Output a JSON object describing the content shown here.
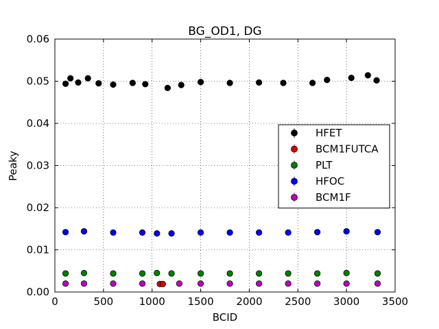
{
  "chart_data": {
    "type": "scatter",
    "title": "BG_OD1, DG",
    "xlabel": "BCID",
    "ylabel": "Peaky",
    "xlim": [
      0,
      3500
    ],
    "ylim": [
      0,
      0.06
    ],
    "xticks": [
      0,
      500,
      1000,
      1500,
      2000,
      2500,
      3000,
      3500
    ],
    "xtick_labels": [
      "0",
      "500",
      "1000",
      "1500",
      "2000",
      "2500",
      "3000",
      "3500"
    ],
    "yticks": [
      0.0,
      0.01,
      0.02,
      0.03,
      0.04,
      0.05,
      0.06
    ],
    "ytick_labels": [
      "0.00",
      "0.01",
      "0.02",
      "0.03",
      "0.04",
      "0.05",
      "0.06"
    ],
    "grid": true,
    "legend_position": "center-right",
    "series": [
      {
        "name": "HFET",
        "color": "#000000",
        "x": [
          110,
          160,
          240,
          340,
          450,
          600,
          800,
          930,
          1160,
          1300,
          1500,
          1800,
          2100,
          2350,
          2650,
          2800,
          3050,
          3220,
          3310
        ],
        "y": [
          0.0494,
          0.0507,
          0.0497,
          0.0507,
          0.0495,
          0.0492,
          0.0496,
          0.0493,
          0.0484,
          0.0491,
          0.0498,
          0.0496,
          0.0497,
          0.0496,
          0.0496,
          0.0503,
          0.0508,
          0.0514,
          0.0502
        ]
      },
      {
        "name": "BCM1FUTCA",
        "color": "#dd0000",
        "x": [
          1080,
          1110
        ],
        "y": [
          0.0019,
          0.0019
        ]
      },
      {
        "name": "PLT",
        "color": "#008000",
        "x": [
          110,
          300,
          600,
          900,
          1050,
          1200,
          1500,
          1800,
          2100,
          2400,
          2700,
          3000,
          3320
        ],
        "y": [
          0.0044,
          0.0045,
          0.0044,
          0.0044,
          0.0045,
          0.0044,
          0.0044,
          0.0044,
          0.0044,
          0.0044,
          0.0044,
          0.0045,
          0.0044
        ]
      },
      {
        "name": "HFOC",
        "color": "#0000ff",
        "x": [
          110,
          300,
          600,
          900,
          1050,
          1200,
          1500,
          1800,
          2100,
          2400,
          2700,
          3000,
          3320
        ],
        "y": [
          0.0142,
          0.0144,
          0.0141,
          0.0141,
          0.0139,
          0.0139,
          0.0141,
          0.0141,
          0.0141,
          0.0141,
          0.0142,
          0.0144,
          0.0142
        ]
      },
      {
        "name": "BCM1F",
        "color": "#bf00bf",
        "x": [
          110,
          300,
          600,
          900,
          1280,
          1500,
          1800,
          2100,
          2400,
          2700,
          3000,
          3320
        ],
        "y": [
          0.002,
          0.002,
          0.002,
          0.002,
          0.002,
          0.002,
          0.002,
          0.002,
          0.002,
          0.002,
          0.002,
          0.002
        ]
      }
    ]
  }
}
